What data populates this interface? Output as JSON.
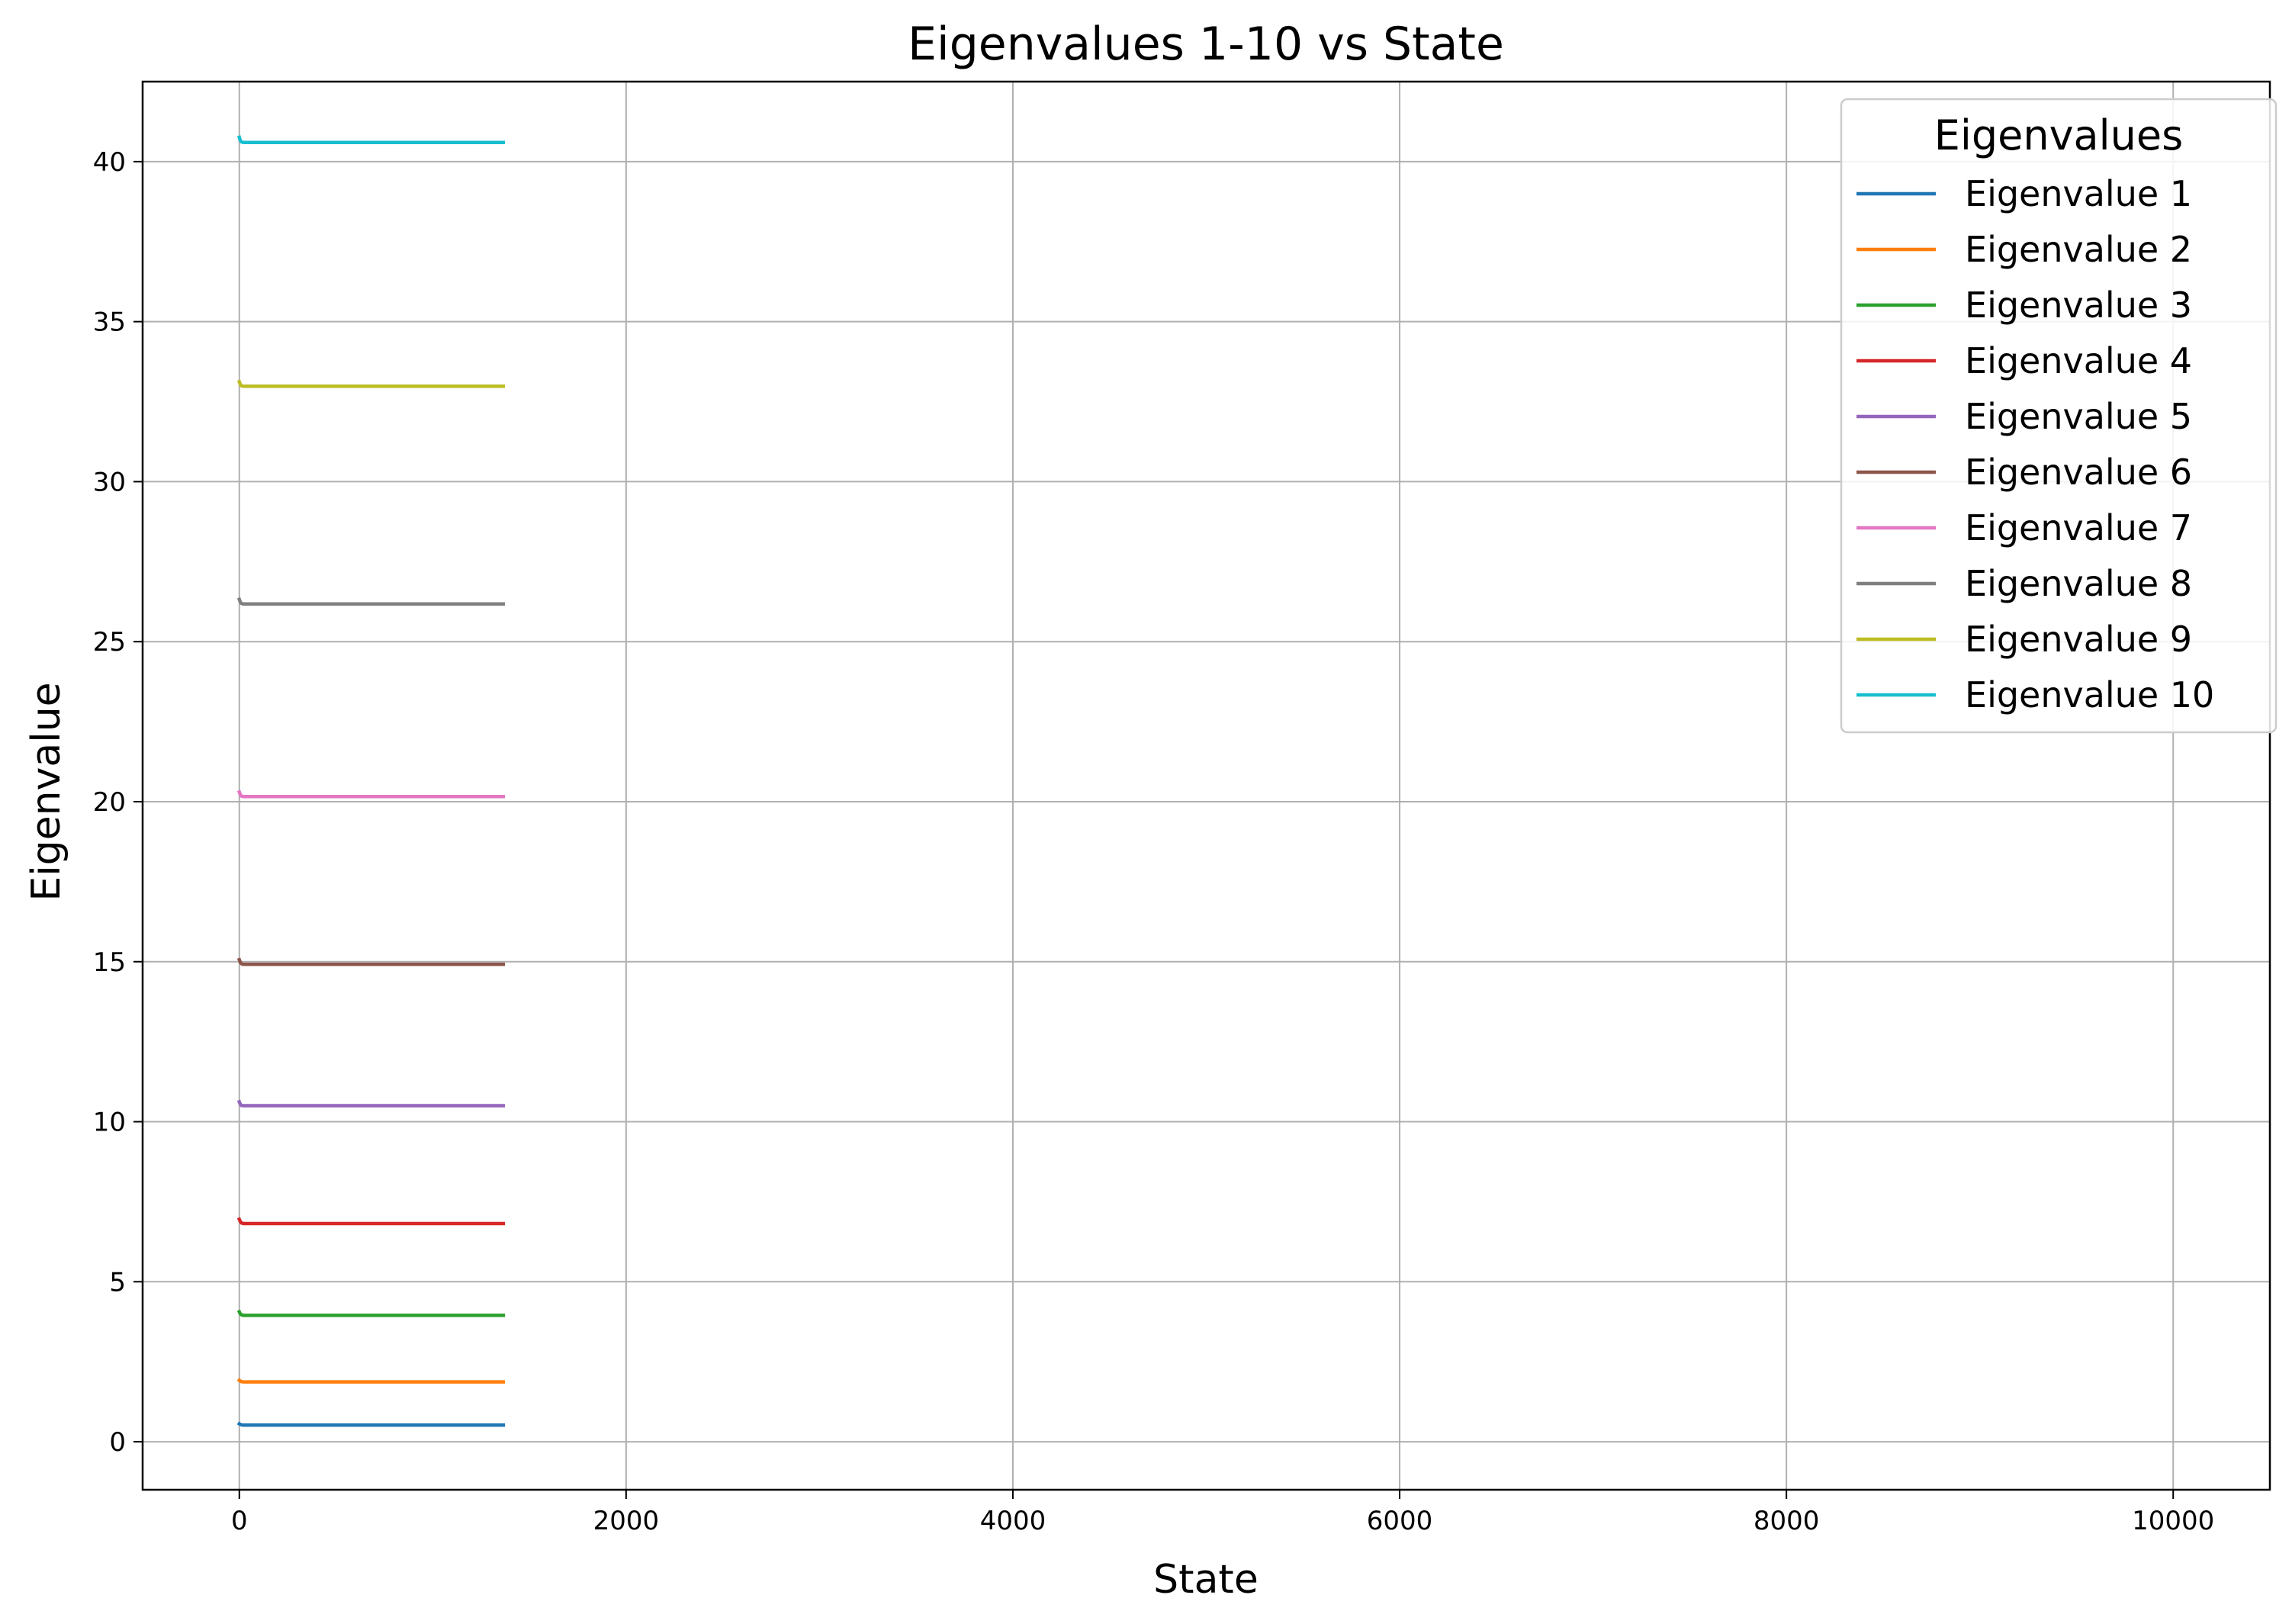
{
  "chart_data": {
    "type": "line",
    "title": "Eigenvalues 1-10 vs State",
    "xlabel": "State",
    "ylabel": "Eigenvalue",
    "xlim": [
      -500,
      10500
    ],
    "ylim": [
      -1.5,
      42.5
    ],
    "xticks": [
      0,
      2000,
      4000,
      6000,
      8000,
      10000
    ],
    "yticks": [
      0,
      5,
      10,
      15,
      20,
      25,
      30,
      35,
      40
    ],
    "grid": true,
    "legend": {
      "title": "Eigenvalues",
      "position": "top-right"
    },
    "x": [
      0,
      5,
      10,
      20,
      40,
      80,
      160,
      320,
      640,
      1000,
      1365
    ],
    "series": [
      {
        "name": "Eigenvalue 1",
        "color": "#1f77b4",
        "values": [
          0.56,
          0.54,
          0.53,
          0.52,
          0.52,
          0.52,
          0.52,
          0.52,
          0.52,
          0.52,
          0.52
        ]
      },
      {
        "name": "Eigenvalue 2",
        "color": "#ff7f0e",
        "values": [
          1.92,
          1.9,
          1.88,
          1.87,
          1.87,
          1.87,
          1.87,
          1.87,
          1.87,
          1.87,
          1.87
        ]
      },
      {
        "name": "Eigenvalue 3",
        "color": "#2ca02c",
        "values": [
          4.06,
          4.0,
          3.97,
          3.95,
          3.95,
          3.95,
          3.95,
          3.95,
          3.95,
          3.95,
          3.95
        ]
      },
      {
        "name": "Eigenvalue 4",
        "color": "#d62728",
        "values": [
          6.95,
          6.88,
          6.84,
          6.82,
          6.82,
          6.82,
          6.82,
          6.82,
          6.82,
          6.82,
          6.82
        ]
      },
      {
        "name": "Eigenvalue 5",
        "color": "#9467bd",
        "values": [
          10.62,
          10.55,
          10.51,
          10.5,
          10.5,
          10.5,
          10.5,
          10.5,
          10.5,
          10.5,
          10.5
        ]
      },
      {
        "name": "Eigenvalue 6",
        "color": "#8c564b",
        "values": [
          15.06,
          14.98,
          14.94,
          14.92,
          14.92,
          14.92,
          14.92,
          14.92,
          14.92,
          14.92,
          14.92
        ]
      },
      {
        "name": "Eigenvalue 7",
        "color": "#e377c2",
        "values": [
          20.3,
          20.22,
          20.18,
          20.16,
          20.16,
          20.16,
          20.16,
          20.16,
          20.16,
          20.16,
          20.16
        ]
      },
      {
        "name": "Eigenvalue 8",
        "color": "#7f7f7f",
        "values": [
          26.32,
          26.24,
          26.2,
          26.18,
          26.18,
          26.18,
          26.18,
          26.18,
          26.18,
          26.18,
          26.18
        ]
      },
      {
        "name": "Eigenvalue 9",
        "color": "#bcbd22",
        "values": [
          33.12,
          33.04,
          33.0,
          32.98,
          32.98,
          32.98,
          32.98,
          32.98,
          32.98,
          32.98,
          32.98
        ]
      },
      {
        "name": "Eigenvalue 10",
        "color": "#17becf",
        "values": [
          40.76,
          40.66,
          40.62,
          40.6,
          40.6,
          40.6,
          40.6,
          40.6,
          40.6,
          40.6,
          40.6
        ]
      }
    ]
  },
  "colors": {
    "grid": "#b0b0b0",
    "axis": "#000000",
    "legend_border": "#cccccc"
  }
}
